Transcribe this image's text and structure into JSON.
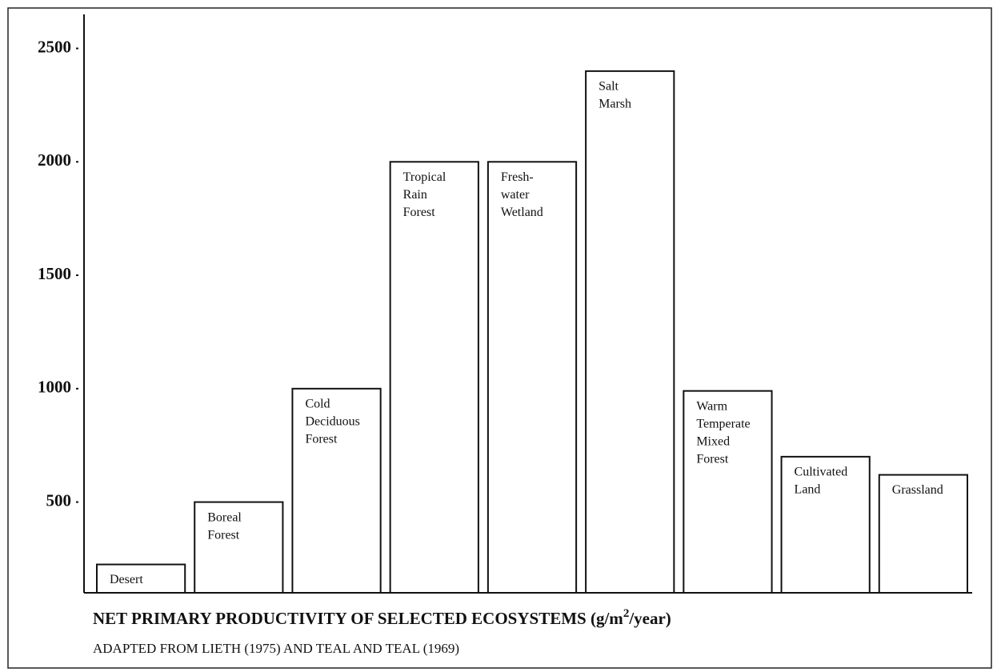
{
  "chart_data": {
    "type": "bar",
    "title": "NET PRIMARY PRODUCTIVITY OF SELECTED ECOSYSTEMS",
    "units": {
      "base": "(g/m",
      "exponent": "2",
      "rest": "/year)"
    },
    "subtitle": "ADAPTED FROM LIETH (1975) AND TEAL AND TEAL (1969)",
    "categories": [
      [
        "Desert"
      ],
      [
        "Boreal",
        "Forest"
      ],
      [
        "Cold",
        "Deciduous",
        "Forest"
      ],
      [
        "Tropical",
        "Rain",
        "Forest"
      ],
      [
        "Fresh-",
        "water",
        "Wetland"
      ],
      [
        "Salt",
        "Marsh"
      ],
      [
        "Warm",
        "Temperate",
        "Mixed",
        "Forest"
      ],
      [
        "Cultivated",
        "Land"
      ],
      [
        "Grassland"
      ]
    ],
    "values": [
      225,
      500,
      1000,
      2000,
      2000,
      2400,
      990,
      700,
      620
    ],
    "color": "#ffffff",
    "ylim": [
      100,
      2650
    ],
    "yticks": [
      500,
      1000,
      1500,
      2000,
      2500
    ],
    "grid": false
  }
}
